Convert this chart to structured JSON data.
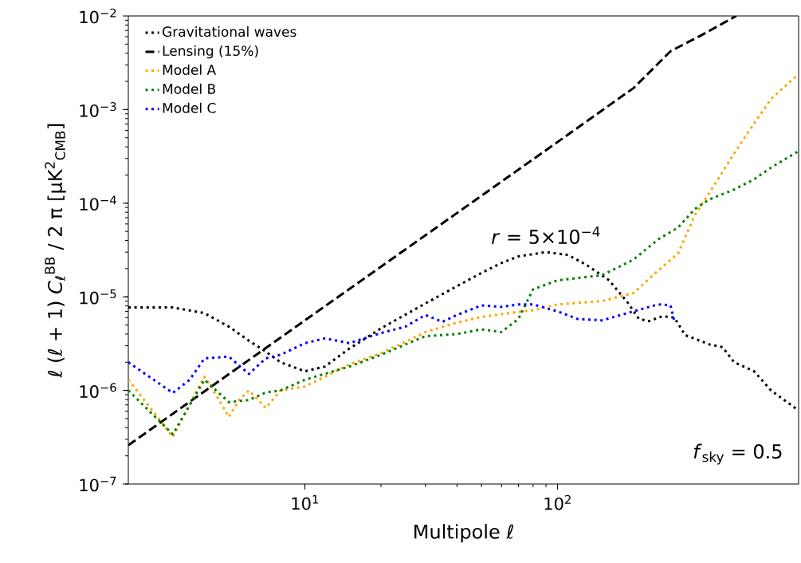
{
  "chart_data": {
    "type": "line",
    "xlabel": "Multipole ℓ",
    "ylabel": "ℓ (ℓ + 1) *C*$_{ℓ}$$^{BB}$ / 2 π [μK$^{2}$$_{CMB}$]",
    "log": "xy",
    "grid": false,
    "legend": "top left",
    "xlim": [
      2,
      900
    ],
    "xticks": [
      {
        "value": 10,
        "label": "10$^{1}$"
      },
      {
        "value": 100,
        "label": "10$^{2}$"
      }
    ],
    "ylim": [
      1e-07,
      0.01
    ],
    "yticks": [
      {
        "value": 1e-07,
        "label": "10$^{−7}$"
      },
      {
        "value": 1e-06,
        "label": "10$^{−6}$"
      },
      {
        "value": 1e-05,
        "label": "10$^{−5}$"
      },
      {
        "value": 0.0001,
        "label": "10$^{−4}$"
      },
      {
        "value": 0.001,
        "label": "10$^{−3}$"
      },
      {
        "value": 0.01,
        "label": "10$^{−2}$"
      }
    ],
    "annotations": [
      {
        "text": "*r* = 5×10$^{−4}$",
        "x": 90,
        "y": 3e-05
      },
      "*f*$_{sky}$ = 0.5"
    ],
    "series": [
      {
        "name": "Gravitational waves",
        "color": "#000000",
        "line_style": "dotted",
        "x": [
          2,
          3,
          4,
          5,
          6,
          7,
          8,
          10,
          12,
          15,
          20,
          30,
          40,
          50,
          60,
          70,
          90,
          110,
          130,
          160,
          190,
          210,
          230,
          260,
          290,
          320,
          400,
          450,
          500,
          600,
          700,
          900
        ],
        "values": [
          7.7e-06,
          7.7e-06,
          6.7e-06,
          4.8e-06,
          3.4e-06,
          2.6e-06,
          2e-06,
          1.6e-06,
          1.8e-06,
          2.8e-06,
          4.6e-06,
          8.5e-06,
          1.3e-05,
          1.8e-05,
          2.3e-05,
          2.7e-05,
          3e-05,
          2.8e-05,
          2.2e-05,
          1.5e-05,
          8.6e-06,
          5.8e-06,
          5.5e-06,
          6.2e-06,
          6e-06,
          3.9e-06,
          3.1e-06,
          2.9e-06,
          2e-06,
          1.6e-06,
          1e-06,
          6.1e-07
        ]
      },
      {
        "name": "Lensing (15%)",
        "color": "#000000",
        "line_style": "dashed",
        "x": [
          2,
          10,
          100,
          200,
          280,
          370,
          510
        ],
        "values": [
          2.6e-07,
          5.6e-06,
          0.00045,
          0.0017,
          0.0042,
          0.0062,
          0.01
        ]
      },
      {
        "name": "Model A",
        "color": "#ffa500",
        "line_style": "dotted",
        "x": [
          2,
          3,
          4,
          4.5,
          5,
          5.5,
          6,
          7,
          8,
          10,
          12,
          15,
          20,
          25,
          30,
          40,
          50,
          70,
          80,
          100,
          150,
          200,
          250,
          300,
          350,
          400,
          500,
          600,
          700,
          900
        ],
        "values": [
          1.3e-06,
          3.2e-07,
          1.4e-06,
          8.5e-07,
          5.2e-07,
          8e-07,
          1e-06,
          6.5e-07,
          1e-06,
          1.1e-06,
          1.4e-06,
          1.9e-06,
          2.5e-06,
          3.3e-06,
          4.2e-06,
          5.3e-06,
          6.1e-06,
          6.9e-06,
          7.2e-06,
          8.3e-06,
          9e-06,
          1.1e-05,
          1.9e-05,
          2.9e-05,
          7.5e-05,
          0.00013,
          0.00034,
          0.00071,
          0.0013,
          0.0024
        ]
      },
      {
        "name": "Model B",
        "color": "#008000",
        "line_style": "dotted",
        "x": [
          2,
          3,
          4,
          5,
          6,
          7,
          8,
          10,
          15,
          20,
          25,
          30,
          40,
          50,
          60,
          70,
          80,
          100,
          150,
          200,
          250,
          300,
          350,
          400,
          500,
          600,
          700,
          900
        ],
        "values": [
          1e-06,
          3.4e-07,
          1.3e-06,
          7.5e-07,
          7.9e-07,
          9.5e-07,
          1e-06,
          1.3e-06,
          1.8e-06,
          2.4e-06,
          3.1e-06,
          3.8e-06,
          4e-06,
          4.5e-06,
          4.2e-06,
          5.8e-06,
          1.2e-05,
          1.5e-05,
          1.7e-05,
          2.5e-05,
          4.1e-05,
          5.5e-05,
          8.7e-05,
          0.00011,
          0.00014,
          0.00018,
          0.00024,
          0.00036
        ]
      },
      {
        "name": "Model C",
        "color": "#0000ff",
        "line_style": "dotted",
        "x": [
          2,
          3,
          3.5,
          4,
          5,
          6,
          7,
          8,
          10,
          12,
          15,
          20,
          25,
          30,
          35,
          40,
          50,
          60,
          70,
          80,
          100,
          120,
          150,
          200,
          250,
          280,
          290
        ],
        "values": [
          2e-06,
          9.4e-07,
          1.3e-06,
          2.2e-06,
          2.3e-06,
          1.5e-06,
          2.2e-06,
          2.4e-06,
          3.2e-06,
          3.6e-06,
          3.2e-06,
          4.1e-06,
          4.8e-06,
          6.4e-06,
          5.4e-06,
          6.4e-06,
          8.1e-06,
          7.8e-06,
          8.3e-06,
          8.3e-06,
          7e-06,
          5.8e-06,
          5.6e-06,
          7e-06,
          8.3e-06,
          8.1e-06,
          5.5e-06
        ]
      }
    ]
  }
}
